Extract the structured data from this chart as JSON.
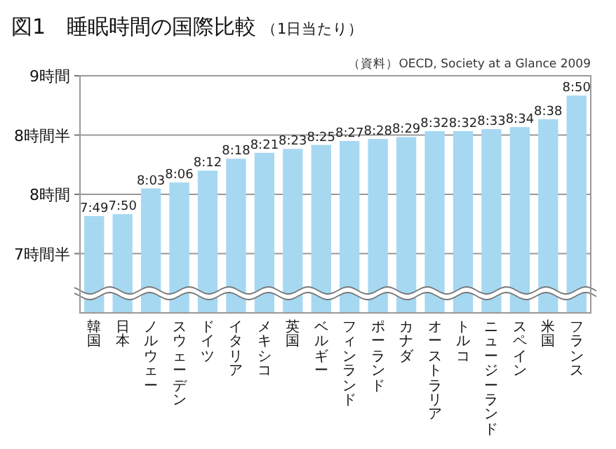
{
  "chart_data": {
    "type": "bar",
    "title": "図1　睡眠時間の国際比較",
    "subtitle": "（1日当たり）",
    "annotations": [
      "（資料）OECD, Society at a Glance 2009"
    ],
    "categories": [
      "韓国",
      "日本",
      "ノルウェー",
      "スウェーデン",
      "ドイツ",
      "イタリア",
      "メキシコ",
      "英国",
      "ベルギー",
      "フィンランド",
      "ポーランド",
      "カナダ",
      "オーストラリア",
      "トルコ",
      "ニュージーランド",
      "スペイン",
      "米国",
      "フランス"
    ],
    "values": [
      7.817,
      7.833,
      8.05,
      8.1,
      8.2,
      8.3,
      8.35,
      8.383,
      8.417,
      8.45,
      8.467,
      8.483,
      8.533,
      8.533,
      8.55,
      8.567,
      8.633,
      8.833
    ],
    "value_labels": [
      "7:49",
      "7:50",
      "8:03",
      "8:06",
      "8:12",
      "8:18",
      "8:21",
      "8:23",
      "8:25",
      "8:27",
      "8:28",
      "8:29",
      "8:32",
      "8:32",
      "8:33",
      "8:34",
      "8:38",
      "8:50"
    ],
    "color": "#a6d8f2",
    "ylim": [
      7,
      9
    ],
    "yticks": [
      {
        "value": 7.5,
        "label": "7時間半"
      },
      {
        "value": 8,
        "label": "8時間"
      },
      {
        "value": 8.5,
        "label": "8時間半"
      },
      {
        "value": 9,
        "label": "9時間"
      }
    ],
    "grid": "y"
  }
}
